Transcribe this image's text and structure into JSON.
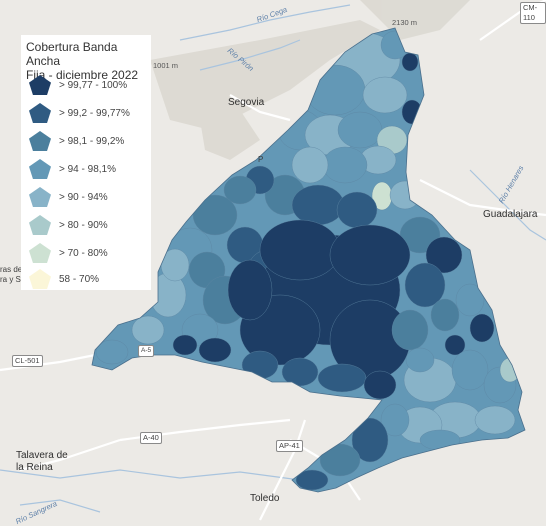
{
  "legend": {
    "title_line1": "Cobertura Banda Ancha",
    "title_line2": "Fija - diciembre 2022",
    "items": [
      {
        "label": "> 99,77 - 100%",
        "color": "#1d3d65"
      },
      {
        "label": "> 99,2 - 99,77%",
        "color": "#2f5b82"
      },
      {
        "label": "> 98,1 - 99,2%",
        "color": "#4b7f9d"
      },
      {
        "label": "> 94 - 98,1%",
        "color": "#6398b6"
      },
      {
        "label": "> 90 - 94%",
        "color": "#88b3c8"
      },
      {
        "label": "> 80 - 90%",
        "color": "#a9cacb"
      },
      {
        "label": "> 70 - 80%",
        "color": "#cde1d2"
      },
      {
        "label": "58 - 70%",
        "color": "#fbf6d8"
      }
    ]
  },
  "places": {
    "segovia": "Segovia",
    "guadalajara": "Guadalajara",
    "talavera_line1": "Talavera de",
    "talavera_line2": "la Reina",
    "toledo": "Toledo",
    "cut_left_1": "ras de",
    "cut_left_2": "ra y S",
    "cut_pa": "P"
  },
  "rivers": {
    "cega": "Río Cega",
    "piron": "Río Pirón",
    "henares": "Río Henares",
    "sangrera": "Río Sangrera"
  },
  "roads": {
    "cl501": "CL-501",
    "a40": "A-40",
    "ap41": "AP-41",
    "cm110": "CM-110",
    "a5": "A-5"
  },
  "elevations": {
    "e1001": "1001 m",
    "e2130": "2130 m"
  },
  "colors": {
    "background": "#eceae6",
    "road": "#ffffff",
    "water": "#a9c4de",
    "relief": "#d9d6cf"
  }
}
